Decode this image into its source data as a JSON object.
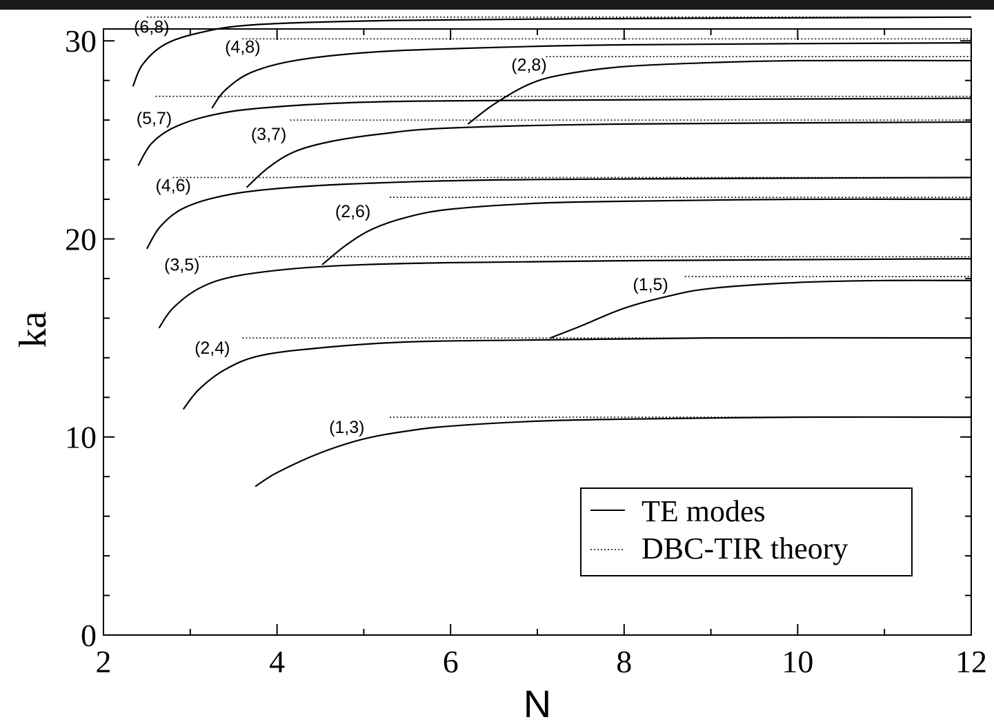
{
  "chart_data": {
    "type": "line",
    "title": "",
    "xlabel": "N",
    "ylabel": "ka",
    "xlim": [
      2,
      12
    ],
    "ylim": [
      0,
      30.6
    ],
    "xticks": [
      2,
      4,
      6,
      8,
      10,
      12
    ],
    "yticks": [
      0,
      10,
      20,
      30
    ],
    "grid": false,
    "legend_position": "bottom-right",
    "legend": [
      {
        "label": "TE modes",
        "style": "solid"
      },
      {
        "label": "DBC-TIR theory",
        "style": "dotted"
      }
    ],
    "series": [
      {
        "label": "(1,3)",
        "style": "solid",
        "points": [
          [
            3.75,
            7.5
          ],
          [
            4,
            8.2
          ],
          [
            4.5,
            9.2
          ],
          [
            5,
            9.9
          ],
          [
            5.5,
            10.3
          ],
          [
            6,
            10.55
          ],
          [
            7,
            10.8
          ],
          [
            8,
            10.9
          ],
          [
            10,
            11.0
          ],
          [
            12,
            11.0
          ]
        ],
        "label_pos": [
          4.6,
          10.2
        ]
      },
      {
        "label": "(2,4)",
        "style": "solid",
        "points": [
          [
            2.92,
            11.4
          ],
          [
            3.1,
            12.4
          ],
          [
            3.4,
            13.4
          ],
          [
            3.8,
            14.1
          ],
          [
            4.5,
            14.5
          ],
          [
            5.5,
            14.8
          ],
          [
            7,
            14.9
          ],
          [
            9,
            15.0
          ],
          [
            12,
            15.0
          ]
        ],
        "label_pos": [
          3.05,
          14.2
        ]
      },
      {
        "label": "(3,5)",
        "style": "solid",
        "points": [
          [
            2.64,
            15.5
          ],
          [
            2.8,
            16.5
          ],
          [
            3.1,
            17.5
          ],
          [
            3.5,
            18.1
          ],
          [
            4.2,
            18.5
          ],
          [
            5,
            18.7
          ],
          [
            6,
            18.8
          ],
          [
            8,
            18.9
          ],
          [
            12,
            19.0
          ]
        ],
        "label_pos": [
          2.7,
          18.4
        ]
      },
      {
        "label": "(4,6)",
        "style": "solid",
        "points": [
          [
            2.5,
            19.5
          ],
          [
            2.65,
            20.6
          ],
          [
            2.9,
            21.5
          ],
          [
            3.3,
            22.1
          ],
          [
            3.9,
            22.5
          ],
          [
            5,
            22.8
          ],
          [
            7,
            23.0
          ],
          [
            12,
            23.1
          ]
        ],
        "label_pos": [
          2.6,
          22.4
        ]
      },
      {
        "label": "(5,7)",
        "style": "solid",
        "points": [
          [
            2.4,
            23.7
          ],
          [
            2.55,
            24.8
          ],
          [
            2.8,
            25.6
          ],
          [
            3.2,
            26.2
          ],
          [
            3.8,
            26.6
          ],
          [
            5,
            26.9
          ],
          [
            7,
            27.0
          ],
          [
            12,
            27.1
          ]
        ],
        "label_pos": [
          2.38,
          25.8
        ]
      },
      {
        "label": "(6,8)",
        "style": "solid",
        "points": [
          [
            2.34,
            27.7
          ],
          [
            2.45,
            28.8
          ],
          [
            2.7,
            29.8
          ],
          [
            3.1,
            30.4
          ],
          [
            3.7,
            30.8
          ],
          [
            5,
            31.0
          ],
          [
            7,
            31.1
          ],
          [
            12,
            31.2
          ]
        ],
        "label_pos": [
          2.35,
          30.4
        ]
      },
      {
        "label": "(2,6)",
        "style": "solid",
        "points": [
          [
            4.52,
            18.7
          ],
          [
            4.8,
            19.7
          ],
          [
            5.1,
            20.5
          ],
          [
            5.5,
            21.1
          ],
          [
            6,
            21.5
          ],
          [
            7,
            21.8
          ],
          [
            8,
            21.9
          ],
          [
            10,
            22.0
          ],
          [
            12,
            22.0
          ]
        ],
        "label_pos": [
          4.67,
          21.1
        ]
      },
      {
        "label": "(3,7)",
        "style": "solid",
        "points": [
          [
            3.65,
            22.6
          ],
          [
            3.9,
            23.6
          ],
          [
            4.2,
            24.4
          ],
          [
            4.6,
            24.9
          ],
          [
            5.2,
            25.3
          ],
          [
            6,
            25.6
          ],
          [
            8,
            25.8
          ],
          [
            12,
            25.9
          ]
        ],
        "label_pos": [
          3.7,
          25.0
        ]
      },
      {
        "label": "(4,8)",
        "style": "solid",
        "points": [
          [
            3.25,
            26.6
          ],
          [
            3.4,
            27.5
          ],
          [
            3.7,
            28.4
          ],
          [
            4.2,
            29.0
          ],
          [
            5,
            29.4
          ],
          [
            6,
            29.6
          ],
          [
            8,
            29.8
          ],
          [
            12,
            29.9
          ]
        ],
        "label_pos": [
          3.4,
          29.4
        ]
      },
      {
        "label": "(1,5)",
        "style": "solid",
        "points": [
          [
            7.15,
            15.0
          ],
          [
            7.5,
            15.6
          ],
          [
            8,
            16.5
          ],
          [
            8.5,
            17.1
          ],
          [
            9,
            17.5
          ],
          [
            10,
            17.8
          ],
          [
            11,
            17.9
          ],
          [
            12,
            17.9
          ]
        ],
        "label_pos": [
          8.1,
          17.4
        ]
      },
      {
        "label": "(2,8)",
        "style": "solid",
        "points": [
          [
            6.2,
            25.8
          ],
          [
            6.5,
            26.8
          ],
          [
            6.9,
            27.8
          ],
          [
            7.3,
            28.3
          ],
          [
            8,
            28.7
          ],
          [
            9,
            28.9
          ],
          [
            10,
            29.0
          ],
          [
            12,
            29.0
          ]
        ],
        "label_pos": [
          6.7,
          28.5
        ]
      },
      {
        "label": "",
        "style": "dotted",
        "points": [
          [
            5.3,
            11.0
          ],
          [
            12,
            11.0
          ]
        ]
      },
      {
        "label": "",
        "style": "dotted",
        "points": [
          [
            3.6,
            15.0
          ],
          [
            12,
            15.0
          ]
        ]
      },
      {
        "label": "",
        "style": "dotted",
        "points": [
          [
            3.1,
            19.1
          ],
          [
            12,
            19.1
          ]
        ]
      },
      {
        "label": "",
        "style": "dotted",
        "points": [
          [
            2.8,
            23.1
          ],
          [
            12,
            23.1
          ]
        ]
      },
      {
        "label": "",
        "style": "dotted",
        "points": [
          [
            2.6,
            27.2
          ],
          [
            12,
            27.2
          ]
        ]
      },
      {
        "label": "",
        "style": "dotted",
        "points": [
          [
            2.5,
            31.2
          ],
          [
            12,
            31.2
          ]
        ]
      },
      {
        "label": "",
        "style": "dotted",
        "points": [
          [
            5.3,
            22.1
          ],
          [
            12,
            22.1
          ]
        ]
      },
      {
        "label": "",
        "style": "dotted",
        "points": [
          [
            4.15,
            26.0
          ],
          [
            12,
            26.0
          ]
        ]
      },
      {
        "label": "",
        "style": "dotted",
        "points": [
          [
            3.6,
            30.1
          ],
          [
            12,
            30.1
          ]
        ]
      },
      {
        "label": "",
        "style": "dotted",
        "points": [
          [
            8.7,
            18.1
          ],
          [
            12,
            18.1
          ]
        ]
      },
      {
        "label": "",
        "style": "dotted",
        "points": [
          [
            7.1,
            29.2
          ],
          [
            12,
            29.2
          ]
        ]
      }
    ]
  }
}
